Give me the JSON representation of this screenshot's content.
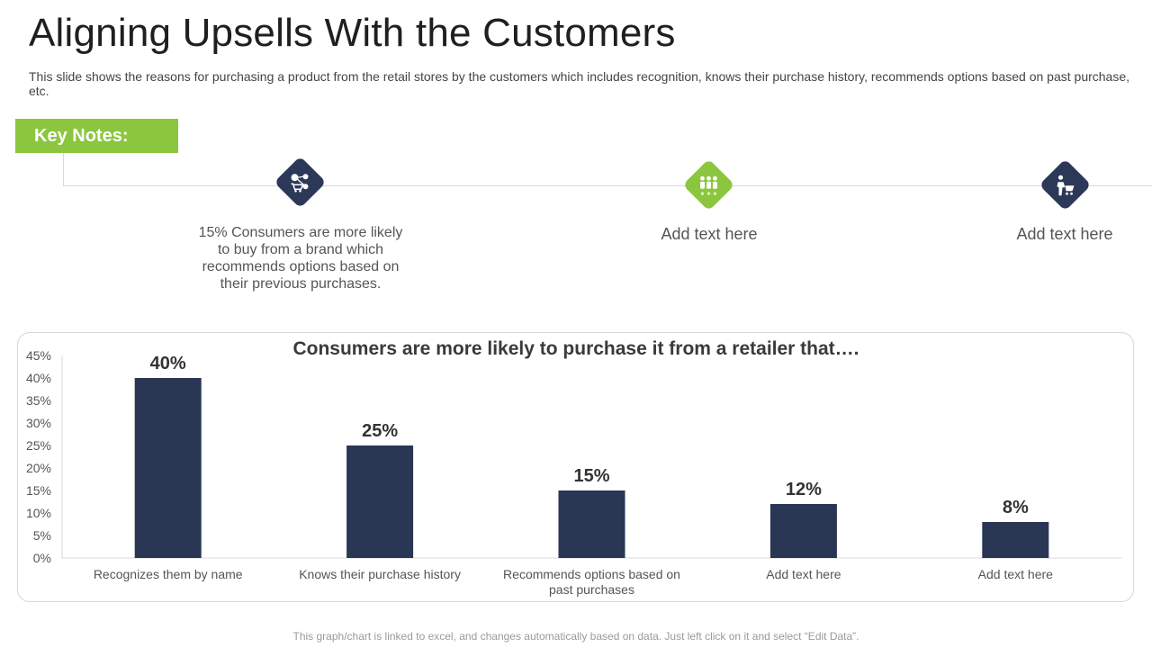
{
  "header": {
    "title": "Aligning Upsells With the Customers",
    "subtitle": "This slide shows the reasons for purchasing a product from the retail stores by the customers which includes recognition, knows their purchase history, recommends options based on past purchase, etc."
  },
  "key_notes": {
    "label": "Key Notes:",
    "items": [
      {
        "icon": "shopping-cart-dollar-icon",
        "color": "#2c3858",
        "text": "15% Consumers are more likely to buy from a brand which recommends options based on their previous purchases."
      },
      {
        "icon": "people-stars-icon",
        "color": "#8cc63e",
        "text": "Add text here"
      },
      {
        "icon": "person-cart-icon",
        "color": "#2c3858",
        "text": "Add text here"
      }
    ]
  },
  "chart_data": {
    "type": "bar",
    "title": "Consumers are more likely  to purchase it from a retailer that….",
    "categories": [
      "Recognizes them by name",
      "Knows their purchase history",
      "Recommends options based on past purchases",
      "Add text here",
      "Add text here"
    ],
    "values": [
      40,
      25,
      15,
      12,
      8
    ],
    "data_labels": [
      "40%",
      "25%",
      "15%",
      "12%",
      "8%"
    ],
    "ylim": [
      0,
      45
    ],
    "yticks": [
      "0%",
      "5%",
      "10%",
      "15%",
      "20%",
      "25%",
      "30%",
      "35%",
      "40%",
      "45%"
    ],
    "bar_color": "#293654",
    "grid": false,
    "legend": false
  },
  "footer": {
    "note": "This graph/chart is linked to excel, and changes automatically based on data. Just left click on it and select “Edit Data”."
  }
}
